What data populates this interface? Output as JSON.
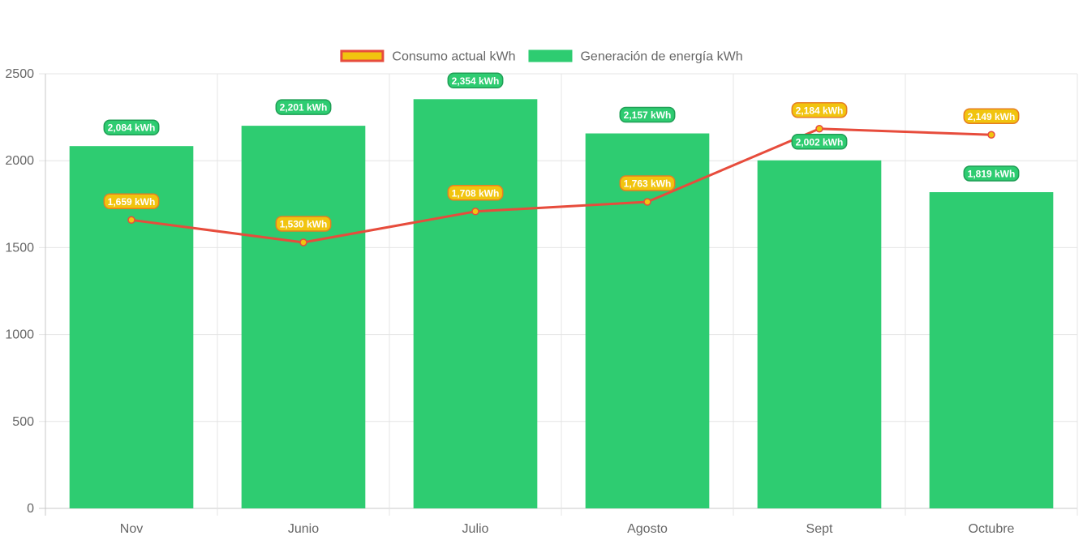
{
  "chart_data": {
    "type": "bar",
    "categories": [
      "Nov",
      "Junio",
      "Julio",
      "Agosto",
      "Sept",
      "Octubre"
    ],
    "series": [
      {
        "name": "Consumo actual kWh",
        "type": "line",
        "values": [
          1659,
          1530,
          1708,
          1763,
          2184,
          2149
        ],
        "labels": [
          "1,659 kWh",
          "1,530 kWh",
          "1,708 kWh",
          "1,763 kWh",
          "2,184 kWh",
          "2,149 kWh"
        ],
        "line_color": "#e74c3c",
        "fill_color": "#f1c40f"
      },
      {
        "name": "Generación de energía kWh",
        "type": "bar",
        "values": [
          2084,
          2201,
          2354,
          2157,
          2002,
          1819
        ],
        "labels": [
          "2,084 kWh",
          "2,201 kWh",
          "2,354 kWh",
          "2,157 kWh",
          "2,002 kWh",
          "1,819 kWh"
        ],
        "color": "#2ecc71"
      }
    ],
    "yticks": [
      "0",
      "500",
      "1000",
      "1500",
      "2000",
      "2500"
    ],
    "ylim": [
      0,
      2500
    ],
    "grid": true,
    "legend_position": "top-center"
  }
}
